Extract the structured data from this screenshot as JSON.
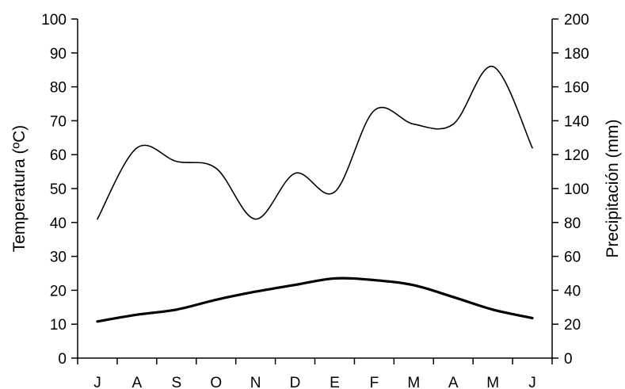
{
  "chart_data": {
    "type": "line",
    "title": "",
    "categories": [
      "J",
      "A",
      "S",
      "O",
      "N",
      "D",
      "E",
      "F",
      "M",
      "A",
      "M",
      "J"
    ],
    "ylabel_left": "Temperatura (ºC)",
    "ylabel_right": "Precipitación (mm)",
    "ylim_left": [
      0,
      100
    ],
    "ylim_right": [
      0,
      200
    ],
    "yticks_left": [
      0,
      10,
      20,
      30,
      40,
      50,
      60,
      70,
      80,
      90,
      100
    ],
    "yticks_right": [
      0,
      20,
      40,
      60,
      80,
      100,
      120,
      140,
      160,
      180,
      200
    ],
    "grid": false,
    "legend": "none",
    "series": [
      {
        "axis": "right",
        "color": "#000000",
        "line_weight": "thin",
        "values": [
          82,
          124,
          116,
          112,
          82,
          109,
          98,
          146,
          138,
          138,
          172,
          124
        ]
      },
      {
        "axis": "left",
        "color": "#000000",
        "line_weight": "thick",
        "values": [
          10.8,
          12.8,
          14.3,
          17.2,
          19.6,
          21.6,
          23.5,
          23.0,
          21.5,
          18.0,
          14.3,
          11.8
        ]
      }
    ]
  }
}
